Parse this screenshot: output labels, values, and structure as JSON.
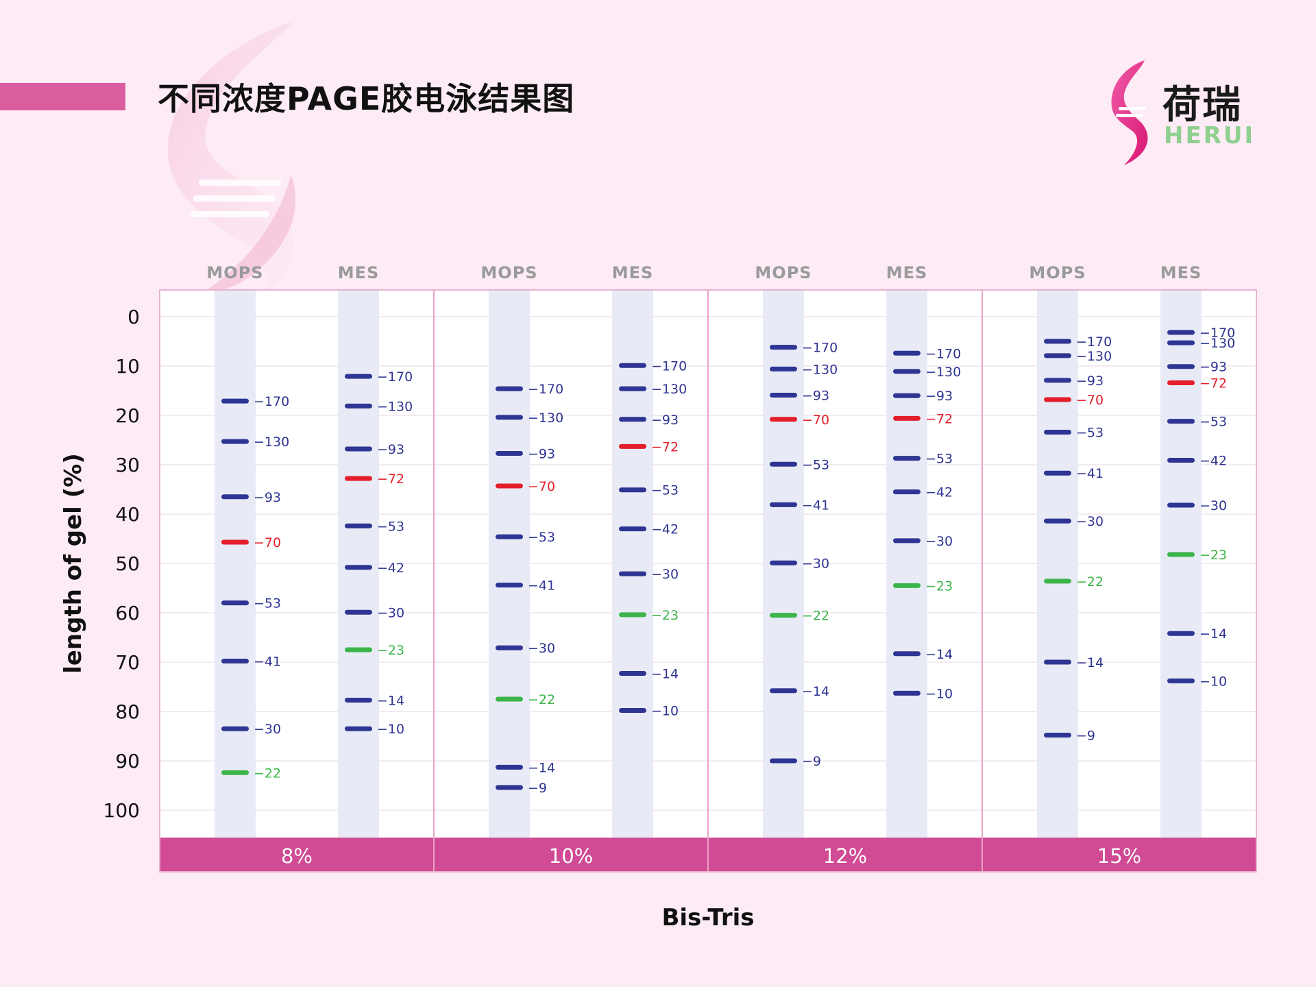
{
  "title": "不同浓度PAGE胶电泳结果图",
  "logo": {
    "cn": "荷瑞",
    "en": "HERUI"
  },
  "colors": {
    "background": "#fdebf5",
    "accent": "#da5d9f",
    "gel_footer": "#d04a94",
    "lane_fill": "#e8ebf6",
    "band_default": "#2e3592",
    "band_70_72": "#e41f2b",
    "band_22_23": "#3bb549"
  },
  "chart_data": {
    "type": "gel_electrophoresis",
    "title": "不同浓度PAGE胶电泳结果图",
    "ylabel": "length of gel (%)",
    "xlabel": "Bis-Tris",
    "ylim": [
      0,
      100
    ],
    "yticks": [
      0,
      10,
      20,
      30,
      40,
      50,
      60,
      70,
      80,
      90,
      100
    ],
    "y_inverted": true,
    "grid": true,
    "band_label_prefix": "−",
    "gels": [
      {
        "concentration": "8%",
        "lanes": [
          {
            "buffer": "MOPS",
            "bands": [
              {
                "kda": "170",
                "position": 17.1
              },
              {
                "kda": "130",
                "position": 25.3
              },
              {
                "kda": "93",
                "position": 36.5
              },
              {
                "kda": "70",
                "position": 45.7
              },
              {
                "kda": "53",
                "position": 58.0
              },
              {
                "kda": "41",
                "position": 69.8
              },
              {
                "kda": "30",
                "position": 83.5
              },
              {
                "kda": "22",
                "position": 92.4
              }
            ]
          },
          {
            "buffer": "MES",
            "bands": [
              {
                "kda": "170",
                "position": 12.1
              },
              {
                "kda": "130",
                "position": 18.1
              },
              {
                "kda": "93",
                "position": 26.8
              },
              {
                "kda": "72",
                "position": 32.8
              },
              {
                "kda": "53",
                "position": 42.4
              },
              {
                "kda": "42",
                "position": 50.8
              },
              {
                "kda": "30",
                "position": 59.9
              },
              {
                "kda": "23",
                "position": 67.5
              },
              {
                "kda": "14",
                "position": 77.7
              },
              {
                "kda": "10",
                "position": 83.5
              }
            ]
          }
        ]
      },
      {
        "concentration": "10%",
        "lanes": [
          {
            "buffer": "MOPS",
            "bands": [
              {
                "kda": "170",
                "position": 14.6
              },
              {
                "kda": "130",
                "position": 20.4
              },
              {
                "kda": "93",
                "position": 27.7
              },
              {
                "kda": "70",
                "position": 34.3
              },
              {
                "kda": "53",
                "position": 44.6
              },
              {
                "kda": "41",
                "position": 54.4
              },
              {
                "kda": "30",
                "position": 67.1
              },
              {
                "kda": "22",
                "position": 77.5
              },
              {
                "kda": "14",
                "position": 91.3
              },
              {
                "kda": "9",
                "position": 95.4
              }
            ]
          },
          {
            "buffer": "MES",
            "bands": [
              {
                "kda": "170",
                "position": 9.9
              },
              {
                "kda": "130",
                "position": 14.6
              },
              {
                "kda": "93",
                "position": 20.8
              },
              {
                "kda": "72",
                "position": 26.3
              },
              {
                "kda": "53",
                "position": 35.1
              },
              {
                "kda": "42",
                "position": 43.0
              },
              {
                "kda": "30",
                "position": 52.1
              },
              {
                "kda": "23",
                "position": 60.4
              },
              {
                "kda": "14",
                "position": 72.3
              },
              {
                "kda": "10",
                "position": 79.8
              }
            ]
          }
        ]
      },
      {
        "concentration": "12%",
        "lanes": [
          {
            "buffer": "MOPS",
            "bands": [
              {
                "kda": "170",
                "position": 6.2
              },
              {
                "kda": "130",
                "position": 10.6
              },
              {
                "kda": "93",
                "position": 15.9
              },
              {
                "kda": "70",
                "position": 20.8
              },
              {
                "kda": "53",
                "position": 29.9
              },
              {
                "kda": "41",
                "position": 38.1
              },
              {
                "kda": "30",
                "position": 49.9
              },
              {
                "kda": "22",
                "position": 60.5
              },
              {
                "kda": "14",
                "position": 75.8
              },
              {
                "kda": "9",
                "position": 90.0
              }
            ]
          },
          {
            "buffer": "MES",
            "bands": [
              {
                "kda": "170",
                "position": 7.4
              },
              {
                "kda": "130",
                "position": 11.1
              },
              {
                "kda": "93",
                "position": 16.0
              },
              {
                "kda": "72",
                "position": 20.6
              },
              {
                "kda": "53",
                "position": 28.7
              },
              {
                "kda": "42",
                "position": 35.5
              },
              {
                "kda": "30",
                "position": 45.4
              },
              {
                "kda": "23",
                "position": 54.5
              },
              {
                "kda": "14",
                "position": 68.3
              },
              {
                "kda": "10",
                "position": 76.3
              }
            ]
          }
        ]
      },
      {
        "concentration": "15%",
        "lanes": [
          {
            "buffer": "MOPS",
            "bands": [
              {
                "kda": "170",
                "position": 5.0
              },
              {
                "kda": "130",
                "position": 7.9
              },
              {
                "kda": "93",
                "position": 12.9
              },
              {
                "kda": "70",
                "position": 16.8
              },
              {
                "kda": "53",
                "position": 23.4
              },
              {
                "kda": "41",
                "position": 31.7
              },
              {
                "kda": "30",
                "position": 41.4
              },
              {
                "kda": "22",
                "position": 53.6
              },
              {
                "kda": "14",
                "position": 70.0
              },
              {
                "kda": "9",
                "position": 84.8
              }
            ]
          },
          {
            "buffer": "MES",
            "bands": [
              {
                "kda": "170",
                "position": 3.2
              },
              {
                "kda": "130",
                "position": 5.3
              },
              {
                "kda": "93",
                "position": 10.1
              },
              {
                "kda": "72",
                "position": 13.4
              },
              {
                "kda": "53",
                "position": 21.2
              },
              {
                "kda": "42",
                "position": 29.1
              },
              {
                "kda": "30",
                "position": 38.2
              },
              {
                "kda": "23",
                "position": 48.2
              },
              {
                "kda": "14",
                "position": 64.2
              },
              {
                "kda": "10",
                "position": 73.8
              }
            ]
          }
        ]
      }
    ]
  }
}
